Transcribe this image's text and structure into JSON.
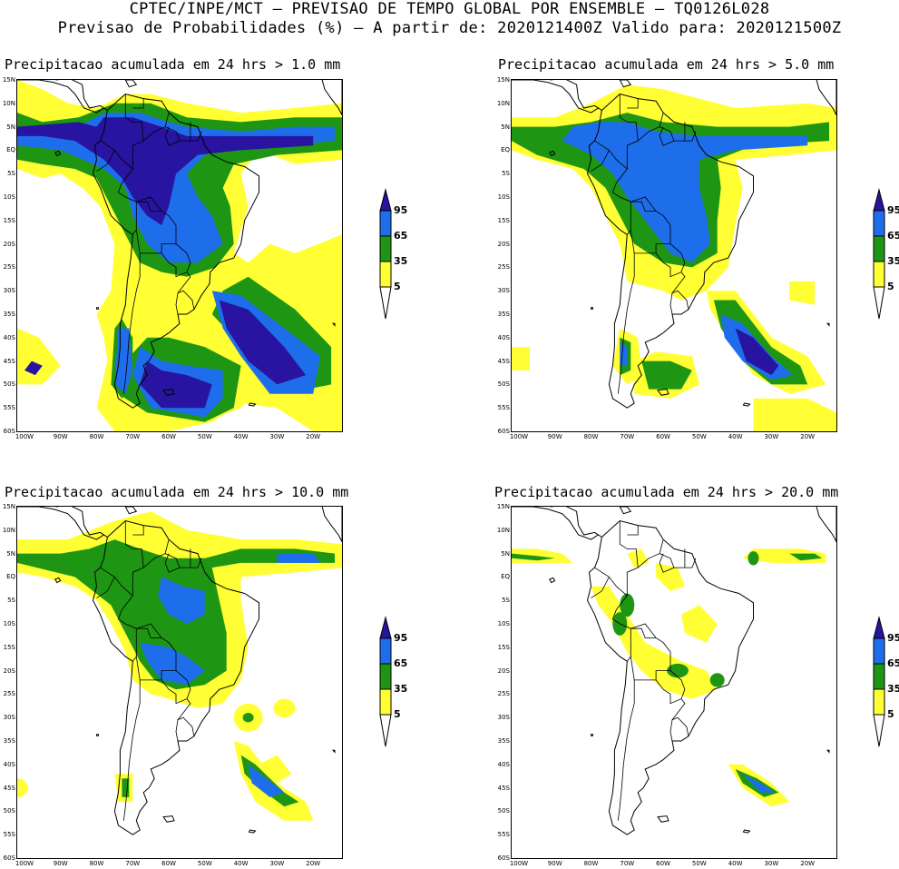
{
  "header": {
    "line1": "CPTEC/INPE/MCT — PREVISAO DE TEMPO GLOBAL POR ENSEMBLE — TQ0126L028",
    "line2": "Previsao de Probabilidades (%) —  A partir de: 2020121400Z  Valido para: 2020121500Z"
  },
  "panels": [
    {
      "title": "Precipitacao acumulada em 24 hrs > 1.0 mm"
    },
    {
      "title": "Precipitacao acumulada em 24 hrs > 5.0 mm"
    },
    {
      "title": "Precipitacao acumulada em 24 hrs > 10.0 mm"
    },
    {
      "title": "Precipitacao acumulada em 24 hrs > 20.0 mm"
    }
  ],
  "axes": {
    "lat_labels": [
      "15N",
      "10N",
      "5N",
      "EQ",
      "5S",
      "10S",
      "15S",
      "20S",
      "25S",
      "30S",
      "35S",
      "40S",
      "45S",
      "50S",
      "55S",
      "60S"
    ],
    "lon_labels": [
      "100W",
      "90W",
      "80W",
      "70W",
      "60W",
      "50W",
      "40W",
      "30W",
      "20W"
    ]
  },
  "legend": {
    "labels": [
      "95",
      "65",
      "35",
      "5"
    ],
    "colors": {
      "c5": "#ffff33",
      "c35": "#1e9614",
      "c65": "#1e6eeb",
      "c95": "#2814a0"
    }
  }
}
